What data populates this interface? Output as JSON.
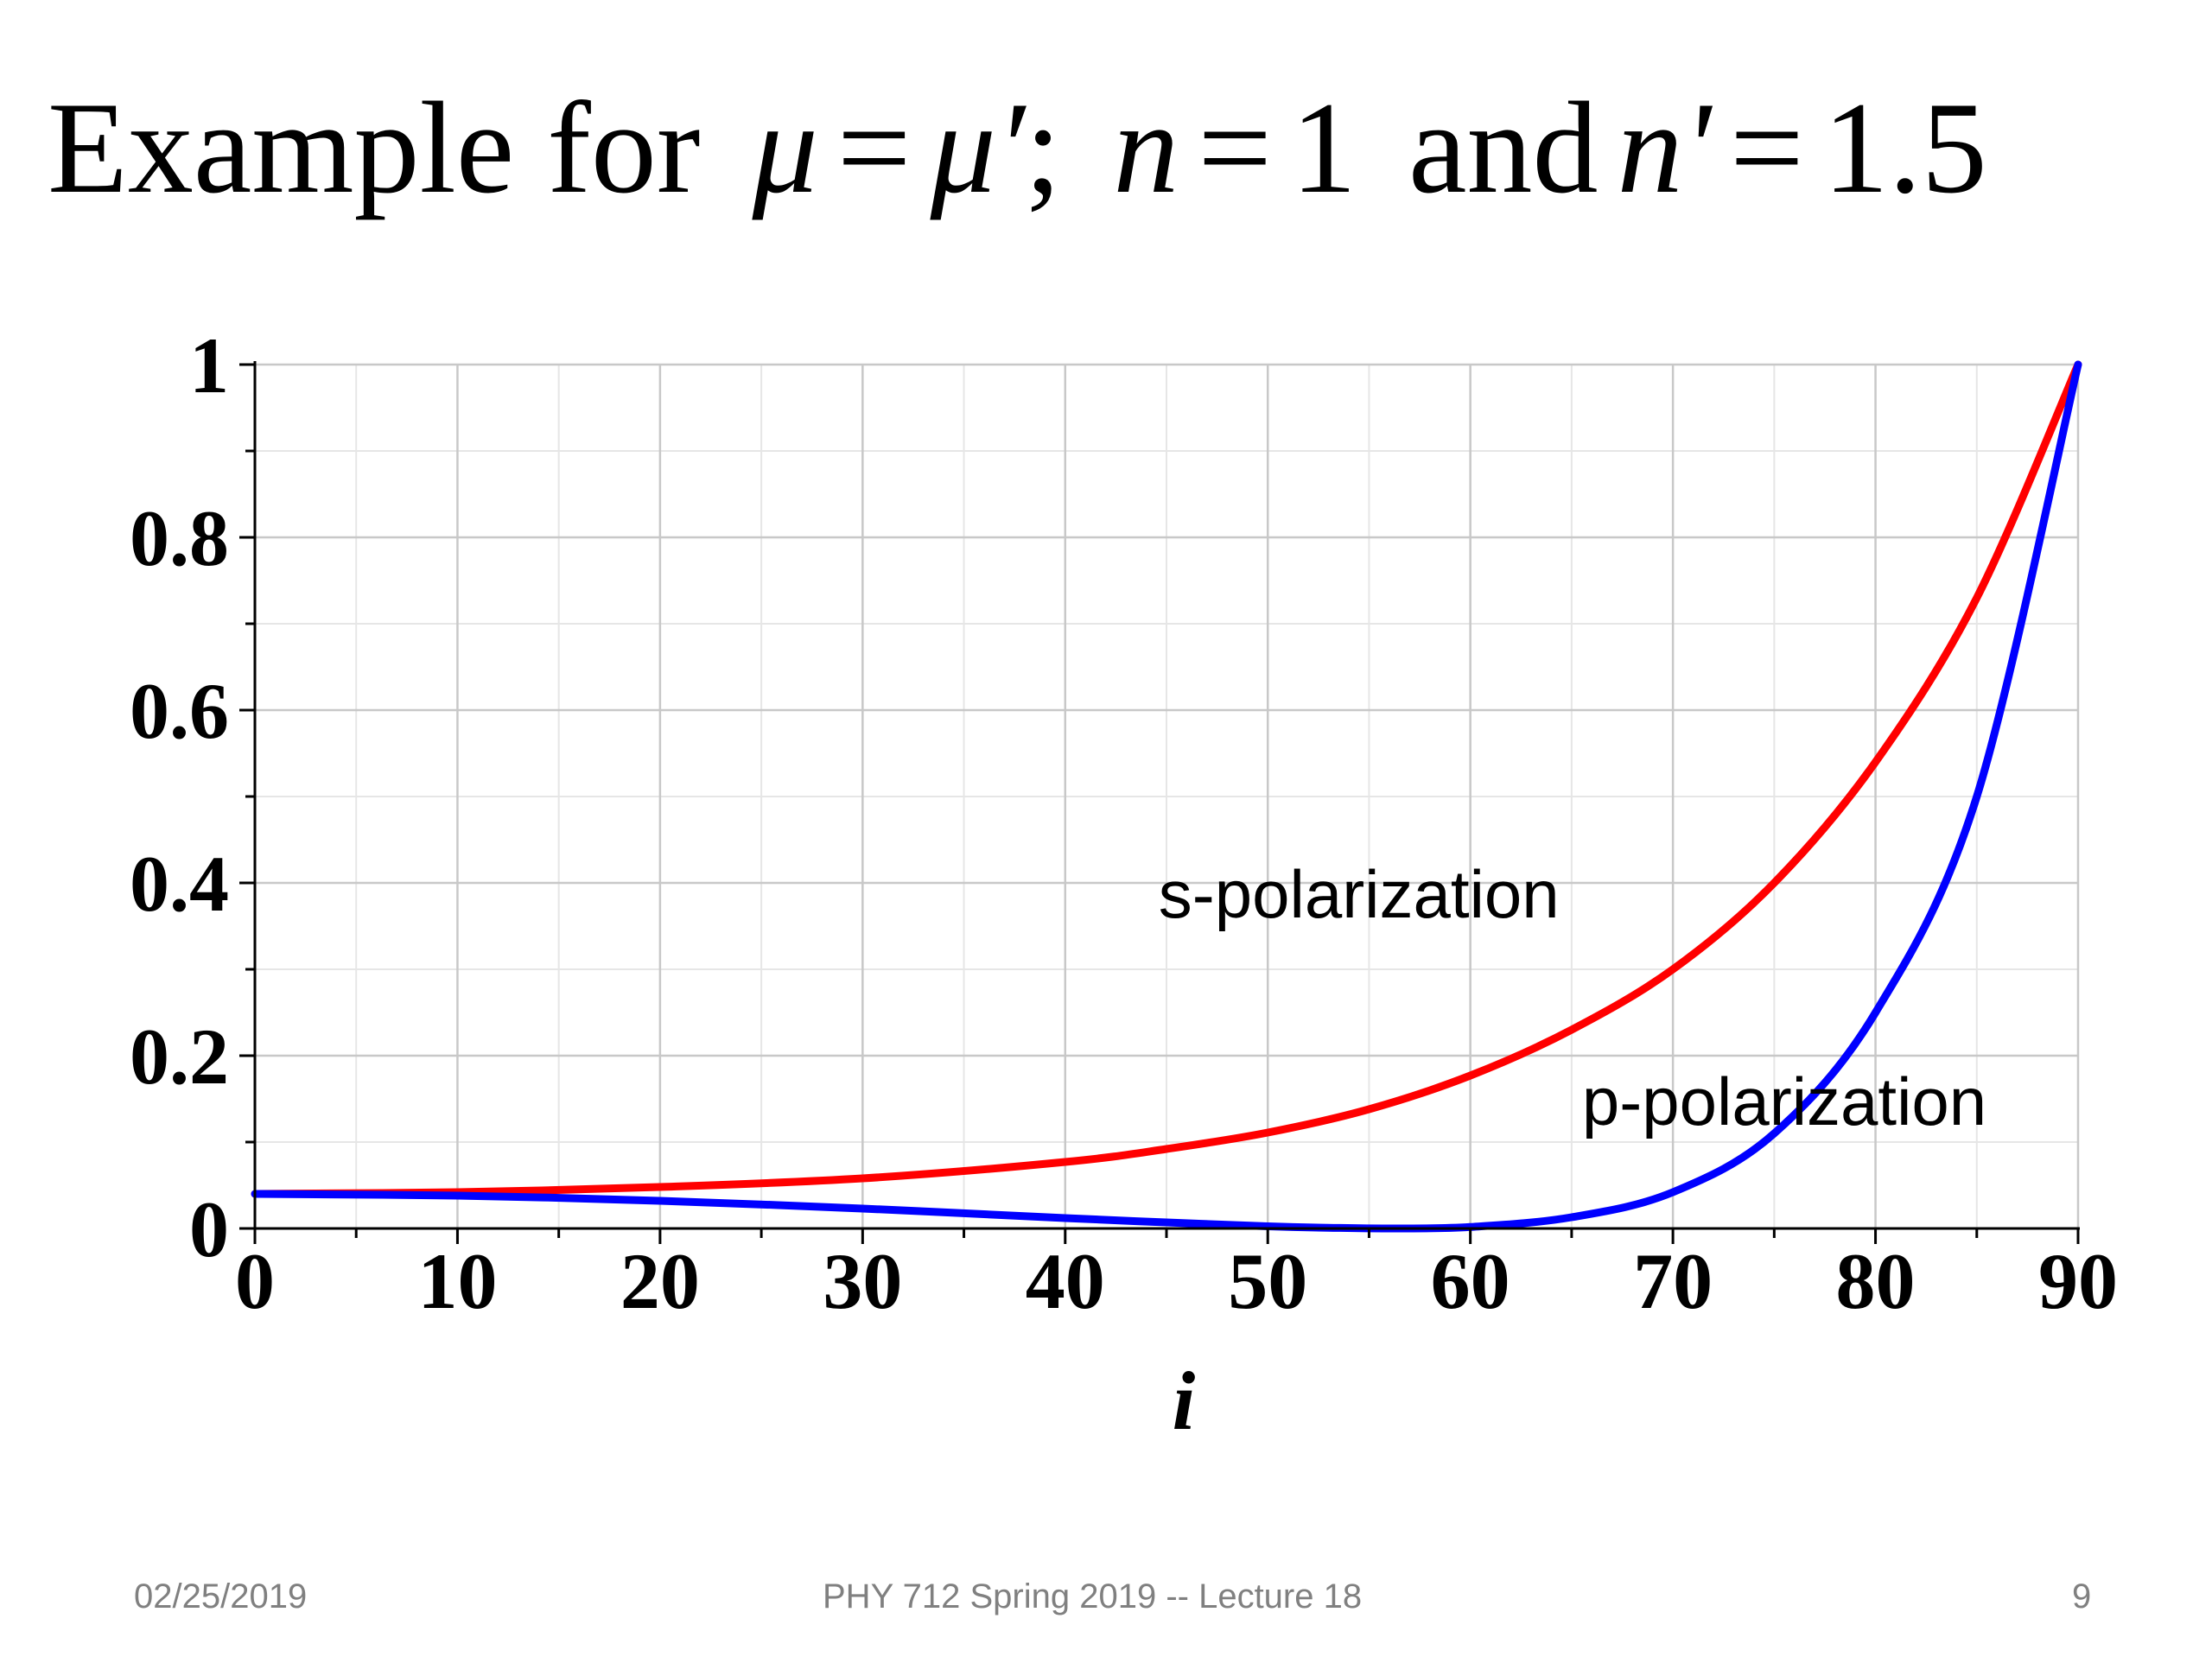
{
  "slide": {
    "title_word": "Example for",
    "mu": "μ",
    "eq": "=",
    "mu_prime": "μ′",
    "semicolon": ";",
    "n": "n",
    "n_value": "1",
    "and_word": "and",
    "n_prime": "n'",
    "n_prime_value": "1.5"
  },
  "footer": {
    "date": "02/25/2019",
    "course": "PHY 712  Spring 2019 -- Lecture 18",
    "page": "9"
  },
  "chart_data": {
    "type": "line",
    "title": "",
    "xlabel": "i",
    "ylabel": "",
    "xlim": [
      0,
      90
    ],
    "ylim": [
      0,
      1
    ],
    "xticks": [
      "0",
      "10",
      "20",
      "30",
      "40",
      "50",
      "60",
      "70",
      "80",
      "90"
    ],
    "yticks": [
      "0",
      "0.2",
      "0.4",
      "0.6",
      "0.8",
      "1"
    ],
    "grid": true,
    "series": [
      {
        "name": "s-polarization",
        "color": "#ff0000",
        "x": [
          0,
          10,
          20,
          30,
          40,
          45,
          50,
          55,
          60,
          65,
          70,
          75,
          80,
          85,
          90
        ],
        "y": [
          0.04,
          0.042,
          0.048,
          0.058,
          0.077,
          0.092,
          0.111,
          0.138,
          0.177,
          0.23,
          0.3,
          0.4,
          0.54,
          0.73,
          1.0
        ]
      },
      {
        "name": "p-polarization",
        "color": "#0000ff",
        "x": [
          0,
          10,
          20,
          30,
          40,
          45,
          50,
          53,
          56.3,
          60,
          65,
          70,
          75,
          80,
          85,
          90
        ],
        "y": [
          0.04,
          0.038,
          0.032,
          0.023,
          0.012,
          0.007,
          0.0025,
          0.0008,
          0.0,
          0.0017,
          0.013,
          0.042,
          0.11,
          0.25,
          0.5,
          1.0
        ]
      }
    ],
    "annotations": [
      {
        "text": "s-polarization",
        "x": 54.5,
        "y": 0.36
      },
      {
        "text": "p-polarization",
        "x": 75.5,
        "y": 0.12
      }
    ]
  }
}
